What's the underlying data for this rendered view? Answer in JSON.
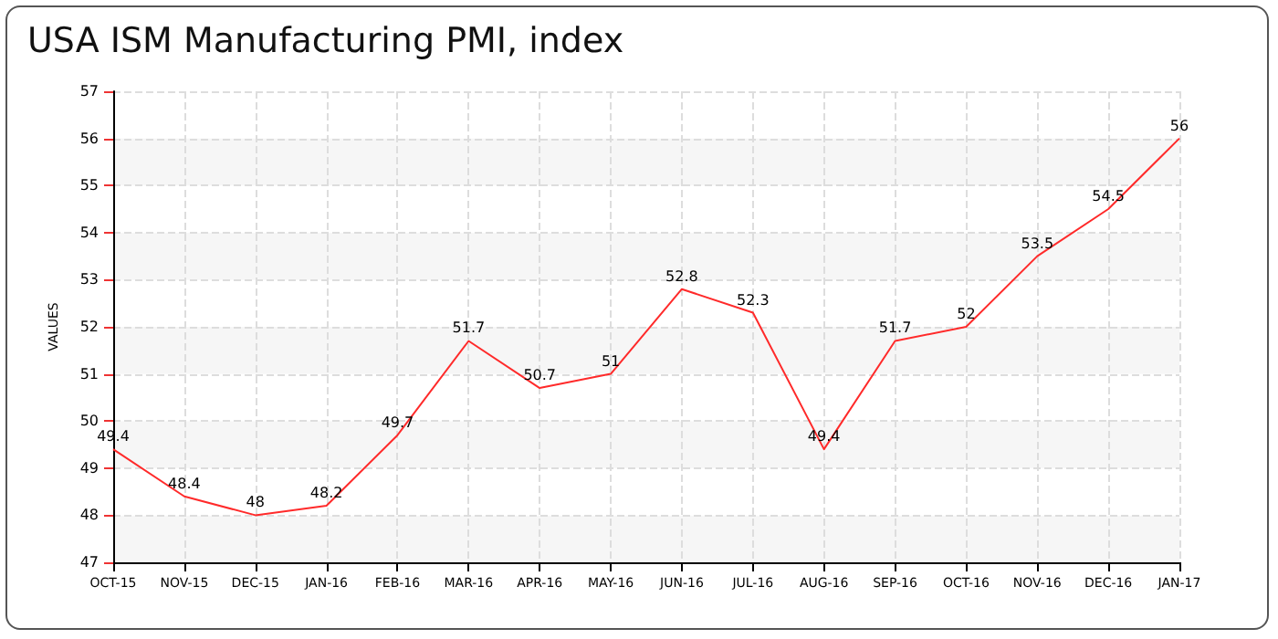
{
  "chart_data": {
    "type": "line",
    "title": "USA ISM Manufacturing PMI, index",
    "ylabel": "VALUES",
    "categories": [
      "OCT-15",
      "NOV-15",
      "DEC-15",
      "JAN-16",
      "FEB-16",
      "MAR-16",
      "APR-16",
      "MAY-16",
      "JUN-16",
      "JUL-16",
      "AUG-16",
      "SEP-16",
      "OCT-16",
      "NOV-16",
      "DEC-16",
      "JAN-17"
    ],
    "series": [
      {
        "color": "#ff2a2a",
        "values": [
          49.4,
          48.4,
          48,
          48.2,
          49.7,
          51.7,
          50.7,
          51,
          52.8,
          52.3,
          49.4,
          51.7,
          52,
          53.5,
          54.5,
          56
        ]
      }
    ],
    "ylim": [
      47,
      57
    ],
    "yticks": [
      47,
      48,
      49,
      50,
      51,
      52,
      53,
      54,
      55,
      56,
      57
    ],
    "grid": true,
    "data_labels": true,
    "marker": "none",
    "line_style": "solid"
  }
}
